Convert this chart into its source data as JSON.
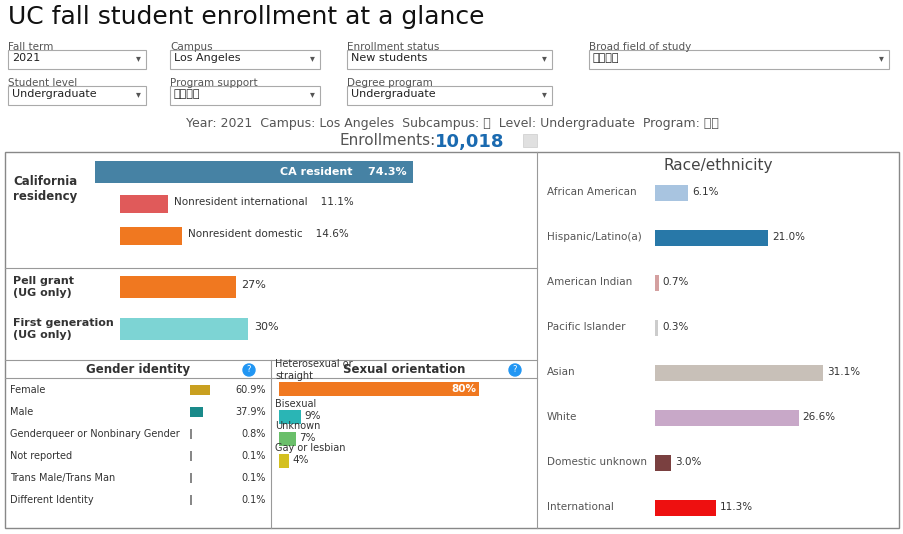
{
  "title": "UC fall student enrollment at a glance",
  "filter_labels": [
    "Fall term",
    "Campus",
    "Enrollment status",
    "Broad field of study"
  ],
  "filter_values": [
    "2021",
    "Los Angeles",
    "New students",
    "（全部）"
  ],
  "filter_labels2": [
    "Student level",
    "Program support",
    "Degree program"
  ],
  "filter_values2": [
    "Undergraduate",
    "（全部）",
    "Undergraduate"
  ],
  "subtitle": "Year: 2021  Campus: Los Angeles  Subcampus: 无  Level: Undergraduate  Program: 全部",
  "enrollments_label": "Enrollments:",
  "enrollments_value": "10,018",
  "ca_residency": {
    "ca_resident": {
      "label": "CA resident",
      "pct": 74.3,
      "color": "#4682a4"
    },
    "nonresident_intl": {
      "label": "Nonresident international",
      "pct": 11.1,
      "color": "#e05a5a"
    },
    "nonresident_dom": {
      "label": "Nonresident domestic",
      "pct": 14.6,
      "color": "#f07820"
    }
  },
  "pell_grant": {
    "label": "Pell grant\n(UG only)",
    "pct": 27,
    "color": "#f07820"
  },
  "first_gen": {
    "label": "First generation\n(UG only)",
    "pct": 30,
    "color": "#7dd4d4"
  },
  "gender": {
    "title": "Gender identity",
    "items": [
      {
        "label": "Female",
        "pct": 60.9,
        "color": "#c9a020"
      },
      {
        "label": "Male",
        "pct": 37.9,
        "color": "#1a8a8a"
      },
      {
        "label": "Genderqueer or Nonbinary Gender",
        "pct": 0.8,
        "color": "#888888"
      },
      {
        "label": "Not reported",
        "pct": 0.1,
        "color": "#888888"
      },
      {
        "label": "Trans Male/Trans Man",
        "pct": 0.1,
        "color": "#888888"
      },
      {
        "label": "Different Identity",
        "pct": 0.1,
        "color": "#888888"
      }
    ]
  },
  "sexual": {
    "title": "Sexual orientation",
    "items": [
      {
        "label": "Heterosexual or\nstraight",
        "pct": 80,
        "color": "#f07820"
      },
      {
        "label": "Bisexual",
        "pct": 9,
        "color": "#2ab5b5"
      },
      {
        "label": "Unknown",
        "pct": 7,
        "color": "#6abf6a"
      },
      {
        "label": "Gay or lesbian",
        "pct": 4,
        "color": "#d4c020"
      }
    ]
  },
  "race": {
    "title": "Race/ethnicity",
    "items": [
      {
        "label": "African American",
        "pct": 6.1,
        "color": "#a8c4e0"
      },
      {
        "label": "Hispanic/Latino(a)",
        "pct": 21.0,
        "color": "#2878a8"
      },
      {
        "label": "American Indian",
        "pct": 0.7,
        "color": "#d4a0a0"
      },
      {
        "label": "Pacific Islander",
        "pct": 0.3,
        "color": "#cccccc"
      },
      {
        "label": "Asian",
        "pct": 31.1,
        "color": "#c8c0b8"
      },
      {
        "label": "White",
        "pct": 26.6,
        "color": "#c8a8c8"
      },
      {
        "label": "Domestic unknown",
        "pct": 3.0,
        "color": "#7a4040"
      },
      {
        "label": "International",
        "pct": 11.3,
        "color": "#ee1010"
      }
    ]
  },
  "bg_color": "#ffffff"
}
